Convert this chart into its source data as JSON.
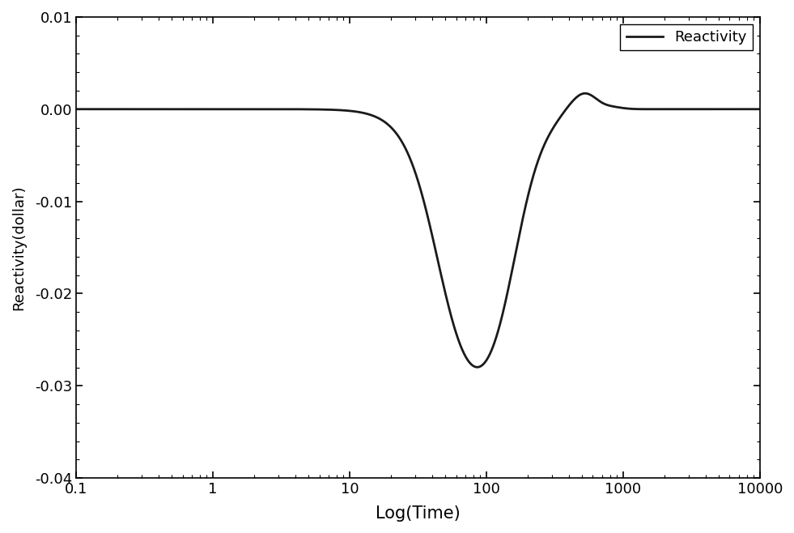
{
  "xlabel": "Log(Time)",
  "ylabel": "Reactivity(dollar)",
  "legend_label": "Reactivity",
  "line_color": "#1a1a1a",
  "line_width": 2.0,
  "background_color": "#ffffff",
  "xlim": [
    0.1,
    10000
  ],
  "ylim": [
    -0.04,
    0.01
  ],
  "yticks": [
    -0.04,
    -0.03,
    -0.02,
    -0.01,
    0.0,
    0.01
  ],
  "xtick_labels": [
    "0.1",
    "1",
    "10",
    "100",
    "1000",
    "10000"
  ],
  "xtick_vals": [
    0.1,
    1,
    10,
    100,
    1000,
    10000
  ],
  "xlabel_fontsize": 15,
  "ylabel_fontsize": 13,
  "tick_fontsize": 13,
  "legend_fontsize": 13,
  "figsize": [
    9.81,
    6.58
  ],
  "dpi": 100
}
